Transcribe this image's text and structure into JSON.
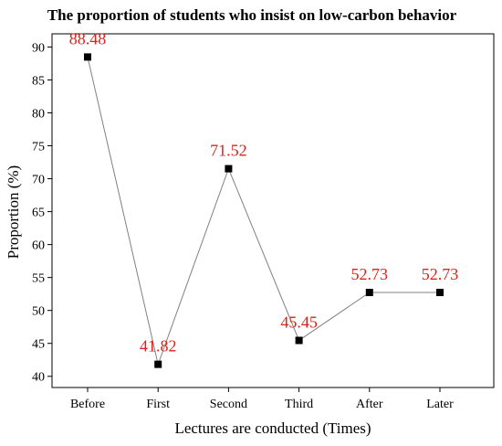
{
  "chart_data": {
    "type": "line",
    "title": "The proportion of students who insist on low-carbon behavior",
    "xlabel": "Lectures are conducted (Times)",
    "ylabel": "Proportion (%)",
    "categories": [
      "Before",
      "First",
      "Second",
      "Third",
      "After",
      "Later"
    ],
    "series": [
      {
        "values": [
          88.48,
          41.82,
          71.52,
          45.45,
          52.73,
          52.73
        ],
        "data_labels": [
          "88.48",
          "41.82",
          "71.52",
          "45.45",
          "52.73",
          "52.73"
        ]
      }
    ],
    "ylim": [
      38.3,
      92.0
    ],
    "yticks": [
      40,
      45,
      50,
      55,
      60,
      65,
      70,
      75,
      80,
      85,
      90
    ],
    "ytick_labels": [
      "40",
      "45",
      "50",
      "55",
      "60",
      "65",
      "70",
      "75",
      "80",
      "85",
      "90"
    ],
    "grid": false,
    "legend": "none",
    "colors": {
      "line": "#808080",
      "marker": "#000000",
      "data_label": "#e0201b",
      "axis": "#000000"
    }
  }
}
